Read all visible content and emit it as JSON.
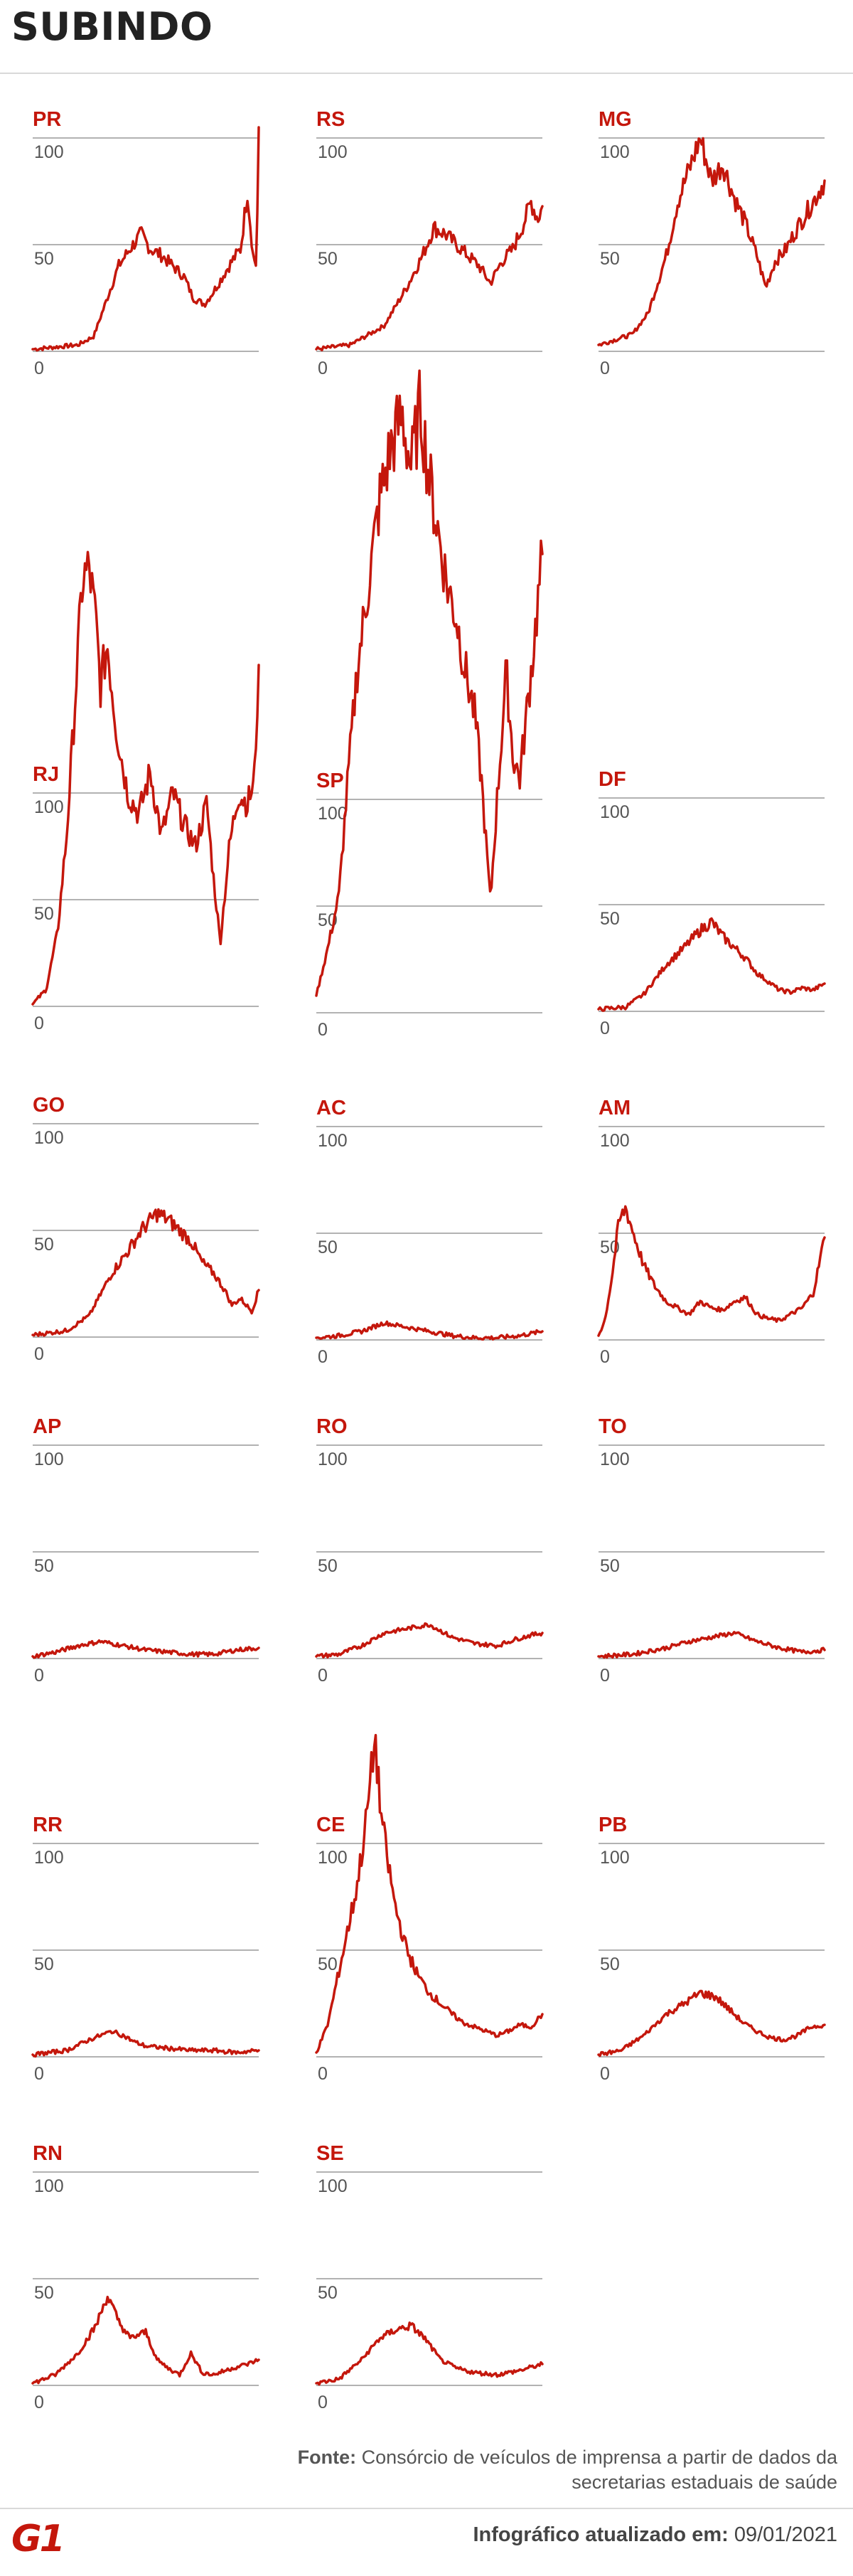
{
  "title": "SUBINDO",
  "source": {
    "label": "Fonte:",
    "text": "Consórcio de veículos de imprensa a partir de dados da secretarias estaduais de saúde"
  },
  "updated": {
    "label": "Infográfico atualizado em:",
    "date": "09/01/2021"
  },
  "logo": "G1",
  "colors": {
    "accent": "#c4170c",
    "grid": "#999999",
    "text": "#555555"
  },
  "chart_data": {
    "type": "line",
    "ylim": [
      0,
      100
    ],
    "yticks": [
      0,
      50,
      100
    ],
    "grid": true,
    "series": [
      {
        "name": "PR",
        "keypoints": [
          [
            0,
            1
          ],
          [
            0.1,
            2
          ],
          [
            0.2,
            3
          ],
          [
            0.27,
            7
          ],
          [
            0.33,
            25
          ],
          [
            0.38,
            40
          ],
          [
            0.43,
            48
          ],
          [
            0.48,
            55
          ],
          [
            0.52,
            48
          ],
          [
            0.57,
            45
          ],
          [
            0.62,
            40
          ],
          [
            0.67,
            35
          ],
          [
            0.71,
            25
          ],
          [
            0.76,
            22
          ],
          [
            0.8,
            28
          ],
          [
            0.84,
            35
          ],
          [
            0.88,
            42
          ],
          [
            0.92,
            48
          ],
          [
            0.95,
            75
          ],
          [
            0.975,
            45
          ],
          [
            0.99,
            40
          ],
          [
            1,
            105
          ]
        ]
      },
      {
        "name": "RS",
        "keypoints": [
          [
            0,
            1
          ],
          [
            0.15,
            3
          ],
          [
            0.3,
            12
          ],
          [
            0.4,
            30
          ],
          [
            0.47,
            45
          ],
          [
            0.52,
            58
          ],
          [
            0.57,
            55
          ],
          [
            0.62,
            50
          ],
          [
            0.67,
            45
          ],
          [
            0.72,
            40
          ],
          [
            0.77,
            32
          ],
          [
            0.82,
            42
          ],
          [
            0.87,
            48
          ],
          [
            0.91,
            58
          ],
          [
            0.95,
            70
          ],
          [
            0.98,
            62
          ],
          [
            1,
            68
          ]
        ]
      },
      {
        "name": "MG",
        "keypoints": [
          [
            0,
            3
          ],
          [
            0.15,
            8
          ],
          [
            0.22,
            18
          ],
          [
            0.3,
            45
          ],
          [
            0.35,
            70
          ],
          [
            0.4,
            85
          ],
          [
            0.45,
            100
          ],
          [
            0.5,
            80
          ],
          [
            0.55,
            88
          ],
          [
            0.6,
            72
          ],
          [
            0.65,
            60
          ],
          [
            0.7,
            45
          ],
          [
            0.74,
            30
          ],
          [
            0.78,
            42
          ],
          [
            0.83,
            48
          ],
          [
            0.88,
            58
          ],
          [
            0.92,
            65
          ],
          [
            0.96,
            72
          ],
          [
            1,
            80
          ]
        ]
      },
      {
        "name": "RJ",
        "keypoints": [
          [
            0,
            1
          ],
          [
            0.06,
            8
          ],
          [
            0.11,
            35
          ],
          [
            0.15,
            80
          ],
          [
            0.18,
            130
          ],
          [
            0.22,
            200
          ],
          [
            0.25,
            205
          ],
          [
            0.28,
            180
          ],
          [
            0.3,
            150
          ],
          [
            0.33,
            170
          ],
          [
            0.37,
            130
          ],
          [
            0.42,
            100
          ],
          [
            0.47,
            90
          ],
          [
            0.52,
            110
          ],
          [
            0.57,
            80
          ],
          [
            0.62,
            100
          ],
          [
            0.67,
            85
          ],
          [
            0.72,
            75
          ],
          [
            0.77,
            95
          ],
          [
            0.8,
            60
          ],
          [
            0.83,
            30
          ],
          [
            0.87,
            75
          ],
          [
            0.91,
            100
          ],
          [
            0.95,
            95
          ],
          [
            0.98,
            105
          ],
          [
            1,
            160
          ]
        ]
      },
      {
        "name": "SP",
        "keypoints": [
          [
            0,
            8
          ],
          [
            0.05,
            30
          ],
          [
            0.1,
            55
          ],
          [
            0.14,
            110
          ],
          [
            0.18,
            160
          ],
          [
            0.23,
            200
          ],
          [
            0.28,
            240
          ],
          [
            0.33,
            265
          ],
          [
            0.38,
            280
          ],
          [
            0.42,
            255
          ],
          [
            0.46,
            285
          ],
          [
            0.5,
            250
          ],
          [
            0.54,
            225
          ],
          [
            0.58,
            200
          ],
          [
            0.62,
            185
          ],
          [
            0.66,
            160
          ],
          [
            0.7,
            140
          ],
          [
            0.73,
            110
          ],
          [
            0.77,
            52
          ],
          [
            0.8,
            100
          ],
          [
            0.84,
            160
          ],
          [
            0.87,
            120
          ],
          [
            0.9,
            110
          ],
          [
            0.93,
            140
          ],
          [
            0.96,
            170
          ],
          [
            1,
            215
          ]
        ]
      },
      {
        "name": "DF",
        "keypoints": [
          [
            0,
            1
          ],
          [
            0.12,
            2
          ],
          [
            0.2,
            8
          ],
          [
            0.3,
            22
          ],
          [
            0.38,
            30
          ],
          [
            0.45,
            38
          ],
          [
            0.5,
            42
          ],
          [
            0.55,
            35
          ],
          [
            0.6,
            30
          ],
          [
            0.65,
            25
          ],
          [
            0.7,
            18
          ],
          [
            0.75,
            14
          ],
          [
            0.8,
            10
          ],
          [
            0.85,
            9
          ],
          [
            0.9,
            11
          ],
          [
            0.95,
            10
          ],
          [
            1,
            13
          ]
        ]
      },
      {
        "name": "GO",
        "keypoints": [
          [
            0,
            1
          ],
          [
            0.15,
            3
          ],
          [
            0.25,
            10
          ],
          [
            0.35,
            30
          ],
          [
            0.42,
            40
          ],
          [
            0.48,
            50
          ],
          [
            0.55,
            58
          ],
          [
            0.6,
            55
          ],
          [
            0.65,
            50
          ],
          [
            0.7,
            45
          ],
          [
            0.75,
            35
          ],
          [
            0.8,
            30
          ],
          [
            0.85,
            22
          ],
          [
            0.88,
            15
          ],
          [
            0.92,
            18
          ],
          [
            0.97,
            12
          ],
          [
            1,
            22
          ]
        ]
      },
      {
        "name": "AC",
        "keypoints": [
          [
            0,
            1
          ],
          [
            0.1,
            2
          ],
          [
            0.2,
            4
          ],
          [
            0.25,
            6
          ],
          [
            0.3,
            8
          ],
          [
            0.4,
            6
          ],
          [
            0.5,
            4
          ],
          [
            0.6,
            2
          ],
          [
            0.7,
            1
          ],
          [
            0.8,
            1
          ],
          [
            0.9,
            2
          ],
          [
            1,
            4
          ]
        ]
      },
      {
        "name": "AM",
        "keypoints": [
          [
            0,
            2
          ],
          [
            0.03,
            10
          ],
          [
            0.06,
            30
          ],
          [
            0.09,
            55
          ],
          [
            0.12,
            62
          ],
          [
            0.16,
            48
          ],
          [
            0.2,
            35
          ],
          [
            0.25,
            25
          ],
          [
            0.3,
            18
          ],
          [
            0.35,
            15
          ],
          [
            0.4,
            12
          ],
          [
            0.45,
            18
          ],
          [
            0.5,
            15
          ],
          [
            0.55,
            14
          ],
          [
            0.6,
            18
          ],
          [
            0.65,
            20
          ],
          [
            0.7,
            12
          ],
          [
            0.75,
            10
          ],
          [
            0.8,
            9
          ],
          [
            0.85,
            12
          ],
          [
            0.9,
            15
          ],
          [
            0.95,
            22
          ],
          [
            1,
            48
          ]
        ]
      },
      {
        "name": "AP",
        "keypoints": [
          [
            0,
            1
          ],
          [
            0.1,
            3
          ],
          [
            0.2,
            6
          ],
          [
            0.3,
            8
          ],
          [
            0.4,
            6
          ],
          [
            0.5,
            4
          ],
          [
            0.6,
            3
          ],
          [
            0.7,
            2
          ],
          [
            0.8,
            2
          ],
          [
            0.9,
            4
          ],
          [
            1,
            5
          ]
        ]
      },
      {
        "name": "RO",
        "keypoints": [
          [
            0,
            1
          ],
          [
            0.1,
            2
          ],
          [
            0.2,
            6
          ],
          [
            0.3,
            12
          ],
          [
            0.4,
            14
          ],
          [
            0.5,
            16
          ],
          [
            0.6,
            10
          ],
          [
            0.7,
            7
          ],
          [
            0.8,
            6
          ],
          [
            0.88,
            9
          ],
          [
            0.95,
            11
          ],
          [
            1,
            12
          ]
        ]
      },
      {
        "name": "TO",
        "keypoints": [
          [
            0,
            1
          ],
          [
            0.15,
            2
          ],
          [
            0.3,
            5
          ],
          [
            0.4,
            8
          ],
          [
            0.5,
            10
          ],
          [
            0.6,
            12
          ],
          [
            0.7,
            8
          ],
          [
            0.8,
            5
          ],
          [
            0.9,
            3
          ],
          [
            1,
            4
          ]
        ]
      },
      {
        "name": "RR",
        "keypoints": [
          [
            0,
            1
          ],
          [
            0.15,
            3
          ],
          [
            0.25,
            8
          ],
          [
            0.35,
            12
          ],
          [
            0.4,
            10
          ],
          [
            0.45,
            7
          ],
          [
            0.5,
            5
          ],
          [
            0.6,
            4
          ],
          [
            0.7,
            3
          ],
          [
            0.8,
            3
          ],
          [
            0.9,
            2
          ],
          [
            1,
            3
          ]
        ]
      },
      {
        "name": "CE",
        "keypoints": [
          [
            0,
            2
          ],
          [
            0.05,
            15
          ],
          [
            0.1,
            40
          ],
          [
            0.14,
            60
          ],
          [
            0.18,
            80
          ],
          [
            0.22,
            110
          ],
          [
            0.26,
            150
          ],
          [
            0.28,
            120
          ],
          [
            0.31,
            95
          ],
          [
            0.35,
            70
          ],
          [
            0.4,
            50
          ],
          [
            0.45,
            38
          ],
          [
            0.5,
            30
          ],
          [
            0.55,
            25
          ],
          [
            0.6,
            20
          ],
          [
            0.65,
            16
          ],
          [
            0.7,
            14
          ],
          [
            0.75,
            12
          ],
          [
            0.8,
            10
          ],
          [
            0.85,
            12
          ],
          [
            0.9,
            15
          ],
          [
            0.95,
            14
          ],
          [
            1,
            20
          ]
        ]
      },
      {
        "name": "PB",
        "keypoints": [
          [
            0,
            1
          ],
          [
            0.1,
            3
          ],
          [
            0.2,
            10
          ],
          [
            0.3,
            20
          ],
          [
            0.38,
            25
          ],
          [
            0.45,
            30
          ],
          [
            0.52,
            28
          ],
          [
            0.58,
            22
          ],
          [
            0.64,
            16
          ],
          [
            0.7,
            12
          ],
          [
            0.76,
            9
          ],
          [
            0.82,
            8
          ],
          [
            0.88,
            10
          ],
          [
            0.94,
            14
          ],
          [
            1,
            15
          ]
        ]
      },
      {
        "name": "RN",
        "keypoints": [
          [
            0,
            1
          ],
          [
            0.1,
            5
          ],
          [
            0.2,
            15
          ],
          [
            0.28,
            28
          ],
          [
            0.33,
            42
          ],
          [
            0.38,
            30
          ],
          [
            0.43,
            22
          ],
          [
            0.5,
            25
          ],
          [
            0.55,
            12
          ],
          [
            0.6,
            8
          ],
          [
            0.65,
            5
          ],
          [
            0.7,
            15
          ],
          [
            0.75,
            6
          ],
          [
            0.8,
            5
          ],
          [
            0.88,
            8
          ],
          [
            0.95,
            10
          ],
          [
            1,
            12
          ]
        ]
      },
      {
        "name": "SE",
        "keypoints": [
          [
            0,
            1
          ],
          [
            0.1,
            3
          ],
          [
            0.2,
            12
          ],
          [
            0.28,
            22
          ],
          [
            0.35,
            26
          ],
          [
            0.42,
            28
          ],
          [
            0.48,
            22
          ],
          [
            0.55,
            12
          ],
          [
            0.62,
            8
          ],
          [
            0.7,
            6
          ],
          [
            0.8,
            5
          ],
          [
            0.9,
            7
          ],
          [
            1,
            10
          ]
        ]
      }
    ]
  }
}
